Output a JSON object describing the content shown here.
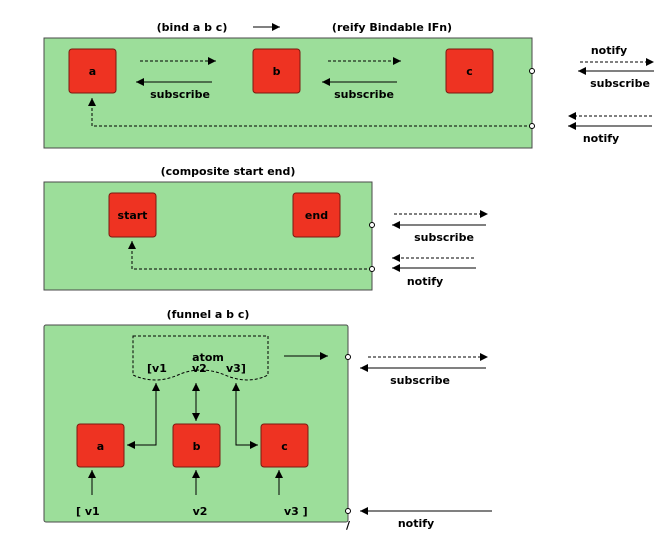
{
  "diagram": {
    "bind": {
      "title": "(bind a b c)",
      "reify_title": "(reify Bindable IFn)",
      "nodes": {
        "a": "a",
        "b": "b",
        "c": "c"
      },
      "subscribe_ab": "subscribe",
      "subscribe_bc": "subscribe",
      "notify_out": "notify",
      "subscribe_out": "subscribe",
      "notify_in": "notify"
    },
    "composite": {
      "title": "(composite start end)",
      "nodes": {
        "start": "start",
        "end": "end"
      },
      "subscribe_out": "subscribe",
      "notify_in": "notify"
    },
    "funnel": {
      "title": "(funnel a b c)",
      "atom_label": "atom",
      "atom_v1": "[v1",
      "atom_v2": "v2",
      "atom_v3": "v3]",
      "nodes": {
        "a": "a",
        "b": "b",
        "c": "c"
      },
      "in_v1": "[ v1",
      "in_v2": "v2",
      "in_v3": "v3 ]",
      "subscribe_out": "subscribe",
      "notify_in": "notify",
      "tick": "/"
    }
  }
}
